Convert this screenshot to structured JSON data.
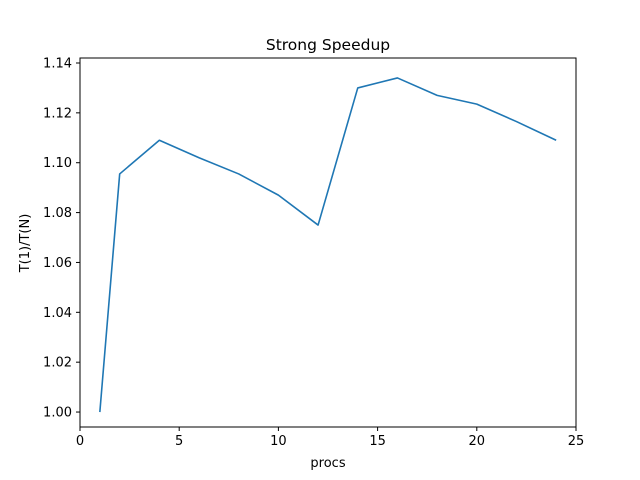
{
  "chart_data": {
    "type": "line",
    "title": "Strong Speedup",
    "xlabel": "procs",
    "ylabel": "T(1)/T(N)",
    "xlim": [
      0,
      25
    ],
    "ylim": [
      0.994,
      1.142
    ],
    "xticks": [
      0,
      5,
      10,
      15,
      20,
      25
    ],
    "xtick_labels": [
      "0",
      "5",
      "10",
      "15",
      "20",
      "25"
    ],
    "yticks": [
      1.0,
      1.02,
      1.04,
      1.06,
      1.08,
      1.1,
      1.12,
      1.14
    ],
    "ytick_labels": [
      "1.00",
      "1.02",
      "1.04",
      "1.06",
      "1.08",
      "1.10",
      "1.12",
      "1.14"
    ],
    "grid": false,
    "series": [
      {
        "color": "#1f77b4",
        "x": [
          1,
          2,
          4,
          6,
          8,
          10,
          12,
          14,
          16,
          18,
          20,
          22,
          24
        ],
        "y": [
          1.0,
          1.0955,
          1.109,
          1.102,
          1.0955,
          1.087,
          1.075,
          1.13,
          1.134,
          1.127,
          1.1235,
          1.1165,
          1.109
        ]
      }
    ]
  }
}
